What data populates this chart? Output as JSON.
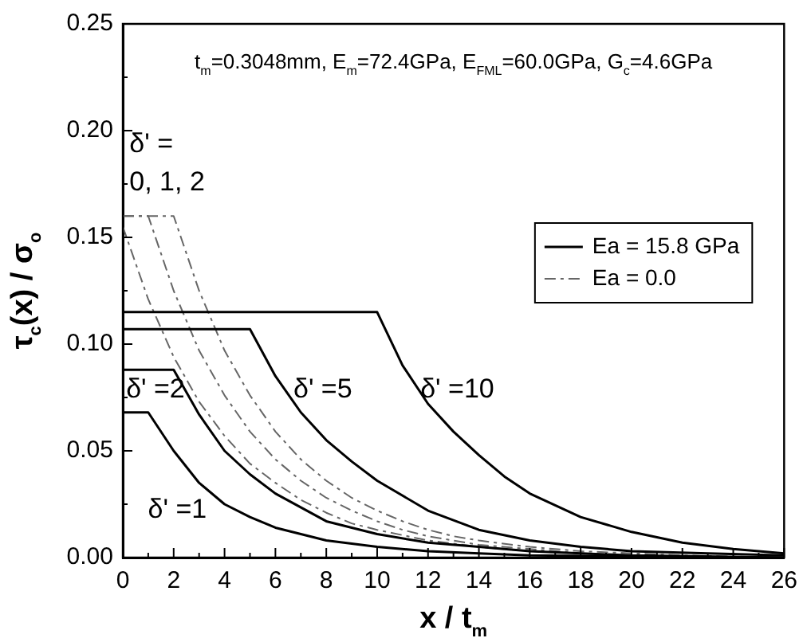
{
  "chart_data": {
    "type": "line",
    "xlabel": "x / t$_{m}$",
    "ylabel": "τ$_{c}$(x) / σ$_{o}$",
    "xlim": [
      0,
      26
    ],
    "ylim": [
      0,
      0.25
    ],
    "xticks": [
      0,
      {
        "value": 1,
        "label": null
      },
      2,
      {
        "value": 3,
        "label": null
      },
      4,
      {
        "value": 5,
        "label": null
      },
      6,
      {
        "value": 7,
        "label": null
      },
      8,
      {
        "value": 9,
        "label": null
      },
      10,
      {
        "value": 11,
        "label": null
      },
      12,
      {
        "value": 13,
        "label": null
      },
      14,
      {
        "value": 15,
        "label": null
      },
      16,
      {
        "value": 17,
        "label": null
      },
      18,
      {
        "value": 19,
        "label": null
      },
      20,
      {
        "value": 21,
        "label": null
      },
      22,
      {
        "value": 23,
        "label": null
      },
      24,
      {
        "value": 25,
        "label": null
      },
      26
    ],
    "yticks": [
      {
        "value": 0,
        "label": "0.00"
      },
      {
        "value": 0.025,
        "label": null
      },
      0.05,
      {
        "value": 0.075,
        "label": null
      },
      {
        "value": 0.1,
        "label": "0.10"
      },
      {
        "value": 0.125,
        "label": null
      },
      0.15,
      {
        "value": 0.175,
        "label": null
      },
      {
        "value": 0.2,
        "label": "0.20"
      },
      {
        "value": 0.225,
        "label": null
      },
      0.25
    ],
    "grid": false,
    "legend": "top right",
    "marker": "none",
    "series": [
      {
        "name": "Ea = 15.8 GPa",
        "color": "#000000",
        "line_style": "solid",
        "x": [
          0,
          1,
          2,
          3,
          4,
          5,
          6,
          8,
          10,
          12,
          14,
          16,
          20,
          26
        ],
        "values": [
          0.068,
          0.068,
          0.05,
          0.035,
          0.025,
          0.019,
          0.014,
          0.008,
          0.005,
          0.003,
          0.002,
          0.001,
          0.0005,
          0
        ]
      },
      {
        "color": "#000000",
        "line_style": "solid",
        "x": [
          0,
          2,
          3,
          4,
          5,
          6,
          8,
          10,
          12,
          14,
          16,
          20,
          26
        ],
        "values": [
          0.088,
          0.088,
          0.067,
          0.05,
          0.039,
          0.03,
          0.017,
          0.011,
          0.007,
          0.005,
          0.003,
          0.001,
          0
        ]
      },
      {
        "color": "#000000",
        "line_style": "solid",
        "x": [
          0,
          5,
          6,
          7,
          8,
          9,
          10,
          12,
          14,
          16,
          18,
          20,
          23,
          26
        ],
        "values": [
          0.107,
          0.107,
          0.085,
          0.068,
          0.055,
          0.045,
          0.036,
          0.022,
          0.013,
          0.008,
          0.005,
          0.003,
          0.002,
          0.001
        ]
      },
      {
        "color": "#000000",
        "line_style": "solid",
        "x": [
          0,
          10,
          11,
          12,
          13,
          14,
          15,
          16,
          18,
          20,
          22,
          24,
          26
        ],
        "values": [
          0.115,
          0.115,
          0.09,
          0.072,
          0.059,
          0.048,
          0.038,
          0.03,
          0.019,
          0.012,
          0.007,
          0.004,
          0.002
        ]
      },
      {
        "name": "Ea = 0.0",
        "color": "#666666",
        "line_style": "dashed",
        "x": [
          0,
          1,
          2,
          3,
          4,
          5,
          6,
          7,
          8,
          9,
          10,
          12,
          14,
          16,
          18,
          20,
          26
        ],
        "values": [
          0.155,
          0.121,
          0.094,
          0.073,
          0.057,
          0.044,
          0.035,
          0.027,
          0.021,
          0.016,
          0.013,
          0.008,
          0.005,
          0.003,
          0.002,
          0.001,
          0
        ]
      },
      {
        "color": "#666666",
        "line_style": "dashed",
        "x": [
          0,
          1,
          2,
          3,
          4,
          5,
          6,
          7,
          8,
          9,
          10,
          11,
          12,
          14,
          16,
          18,
          20,
          26
        ],
        "values": [
          0.16,
          0.16,
          0.125,
          0.097,
          0.076,
          0.059,
          0.046,
          0.036,
          0.028,
          0.022,
          0.017,
          0.013,
          0.01,
          0.006,
          0.004,
          0.002,
          0.001,
          0
        ]
      },
      {
        "color": "#666666",
        "line_style": "dashed",
        "x": [
          0,
          2,
          3,
          4,
          5,
          6,
          7,
          8,
          9,
          10,
          11,
          12,
          13,
          14,
          16,
          18,
          20,
          22,
          26
        ],
        "values": [
          0.16,
          0.16,
          0.125,
          0.097,
          0.076,
          0.059,
          0.046,
          0.036,
          0.028,
          0.022,
          0.017,
          0.013,
          0.01,
          0.008,
          0.005,
          0.003,
          0.002,
          0.001,
          0
        ]
      }
    ],
    "annotations": [
      "t$_{m}$=0.3048mm, E$_{m}$=72.4GPa, E$_{FML}$=60.0GPa, G$_{c}$=4.6GPa",
      "δ' =\n0, 1, 2",
      "δ' =2",
      "δ' =1",
      "δ' =5",
      "δ' =10"
    ]
  }
}
